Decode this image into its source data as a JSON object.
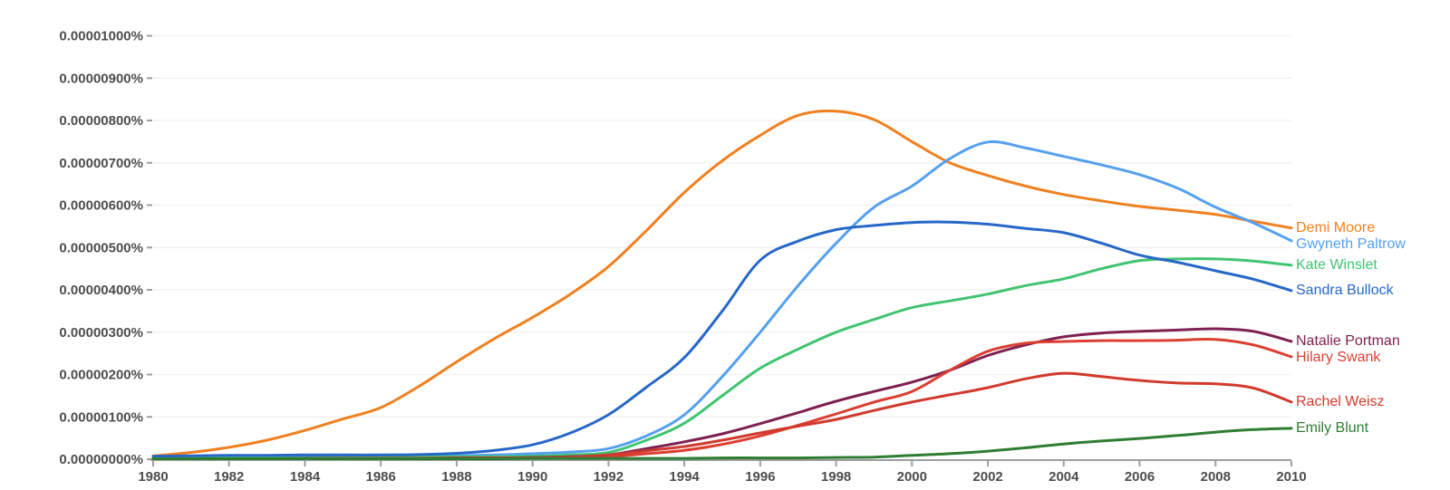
{
  "chart_data": {
    "type": "line",
    "title": "",
    "values_unit_note": "series values are in units of 0.000001 percent (1e-6 %), matching the y-axis tick spacing",
    "x": [
      1980,
      1981,
      1982,
      1983,
      1984,
      1985,
      1986,
      1987,
      1988,
      1989,
      1990,
      1991,
      1992,
      1993,
      1994,
      1995,
      1996,
      1997,
      1998,
      1999,
      2000,
      2001,
      2002,
      2003,
      2004,
      2005,
      2006,
      2007,
      2008,
      2009,
      2010
    ],
    "x_tick_labels": [
      "1980",
      "1982",
      "1984",
      "1986",
      "1988",
      "1990",
      "1992",
      "1994",
      "1996",
      "1998",
      "2000",
      "2002",
      "2004",
      "2006",
      "2008",
      "2010"
    ],
    "y_tick_labels": [
      "0.00001000%",
      "0.00000900%",
      "0.00000800%",
      "0.00000700%",
      "0.00000600%",
      "0.00000500%",
      "0.00000400%",
      "0.00000300%",
      "0.00000200%",
      "0.00000100%",
      "0.00000000%"
    ],
    "ylim": [
      0,
      10
    ],
    "xlim": [
      1980,
      2010
    ],
    "grid": true,
    "legend_position": "right-end-labels",
    "styles": {
      "background": "#ffffff",
      "gridline_color": "#f2f2f2",
      "axis_color": "#9e9e9e",
      "tick_label_color": "#4d4d4d"
    },
    "series": [
      {
        "name": "Demi Moore",
        "color": "#f0801f",
        "values": [
          0.08,
          0.16,
          0.28,
          0.45,
          0.68,
          0.95,
          1.22,
          1.72,
          2.3,
          2.85,
          3.35,
          3.9,
          4.55,
          5.4,
          6.3,
          7.05,
          7.65,
          8.12,
          8.22,
          8.02,
          7.5,
          7.0,
          6.7,
          6.45,
          6.25,
          6.1,
          5.97,
          5.88,
          5.78,
          5.62,
          5.46
        ]
      },
      {
        "name": "Gwyneth Paltrow",
        "color": "#55a0f0",
        "values": [
          0.03,
          0.03,
          0.04,
          0.04,
          0.05,
          0.05,
          0.06,
          0.06,
          0.08,
          0.1,
          0.13,
          0.17,
          0.25,
          0.55,
          1.05,
          1.95,
          3.0,
          4.1,
          5.1,
          5.95,
          6.45,
          7.1,
          7.49,
          7.35,
          7.15,
          6.95,
          6.72,
          6.4,
          5.95,
          5.58,
          5.16
        ]
      },
      {
        "name": "Kate Winslet",
        "color": "#40c471",
        "values": [
          0.02,
          0.02,
          0.03,
          0.03,
          0.03,
          0.04,
          0.04,
          0.05,
          0.06,
          0.06,
          0.07,
          0.1,
          0.16,
          0.45,
          0.85,
          1.5,
          2.15,
          2.6,
          3.0,
          3.3,
          3.58,
          3.74,
          3.9,
          4.1,
          4.26,
          4.5,
          4.69,
          4.73,
          4.73,
          4.68,
          4.58
        ]
      },
      {
        "name": "Sandra Bullock",
        "color": "#2767c8",
        "values": [
          0.07,
          0.08,
          0.09,
          0.09,
          0.1,
          0.1,
          0.1,
          0.11,
          0.14,
          0.21,
          0.34,
          0.62,
          1.05,
          1.7,
          2.4,
          3.5,
          4.7,
          5.15,
          5.42,
          5.52,
          5.59,
          5.6,
          5.55,
          5.45,
          5.35,
          5.1,
          4.82,
          4.65,
          4.45,
          4.25,
          3.98
        ]
      },
      {
        "name": "Natalie Portman",
        "color": "#7e2150",
        "values": [
          0.01,
          0.01,
          0.01,
          0.01,
          0.02,
          0.02,
          0.02,
          0.02,
          0.03,
          0.03,
          0.04,
          0.06,
          0.1,
          0.25,
          0.41,
          0.6,
          0.84,
          1.1,
          1.37,
          1.6,
          1.82,
          2.1,
          2.45,
          2.7,
          2.89,
          2.98,
          3.02,
          3.05,
          3.08,
          3.02,
          2.78
        ]
      },
      {
        "name": "Hilary Swank",
        "color": "#dc3e32",
        "values": [
          0.01,
          0.01,
          0.01,
          0.01,
          0.01,
          0.01,
          0.02,
          0.02,
          0.02,
          0.02,
          0.03,
          0.04,
          0.06,
          0.13,
          0.21,
          0.35,
          0.55,
          0.8,
          1.07,
          1.35,
          1.6,
          2.1,
          2.55,
          2.74,
          2.78,
          2.8,
          2.8,
          2.81,
          2.83,
          2.7,
          2.42
        ]
      },
      {
        "name": "Rachel Weisz",
        "color": "#d03a2d",
        "values": [
          0.01,
          0.01,
          0.01,
          0.01,
          0.01,
          0.02,
          0.02,
          0.02,
          0.02,
          0.03,
          0.03,
          0.05,
          0.1,
          0.2,
          0.3,
          0.45,
          0.62,
          0.78,
          0.94,
          1.15,
          1.35,
          1.52,
          1.69,
          1.9,
          2.03,
          1.95,
          1.86,
          1.8,
          1.78,
          1.68,
          1.35
        ]
      },
      {
        "name": "Emily Blunt",
        "color": "#2f7d32",
        "values": [
          0.01,
          0.01,
          0.01,
          0.01,
          0.01,
          0.01,
          0.01,
          0.01,
          0.01,
          0.01,
          0.02,
          0.02,
          0.02,
          0.02,
          0.02,
          0.03,
          0.03,
          0.03,
          0.04,
          0.05,
          0.09,
          0.13,
          0.19,
          0.27,
          0.36,
          0.43,
          0.49,
          0.56,
          0.64,
          0.7,
          0.73
        ]
      }
    ]
  }
}
